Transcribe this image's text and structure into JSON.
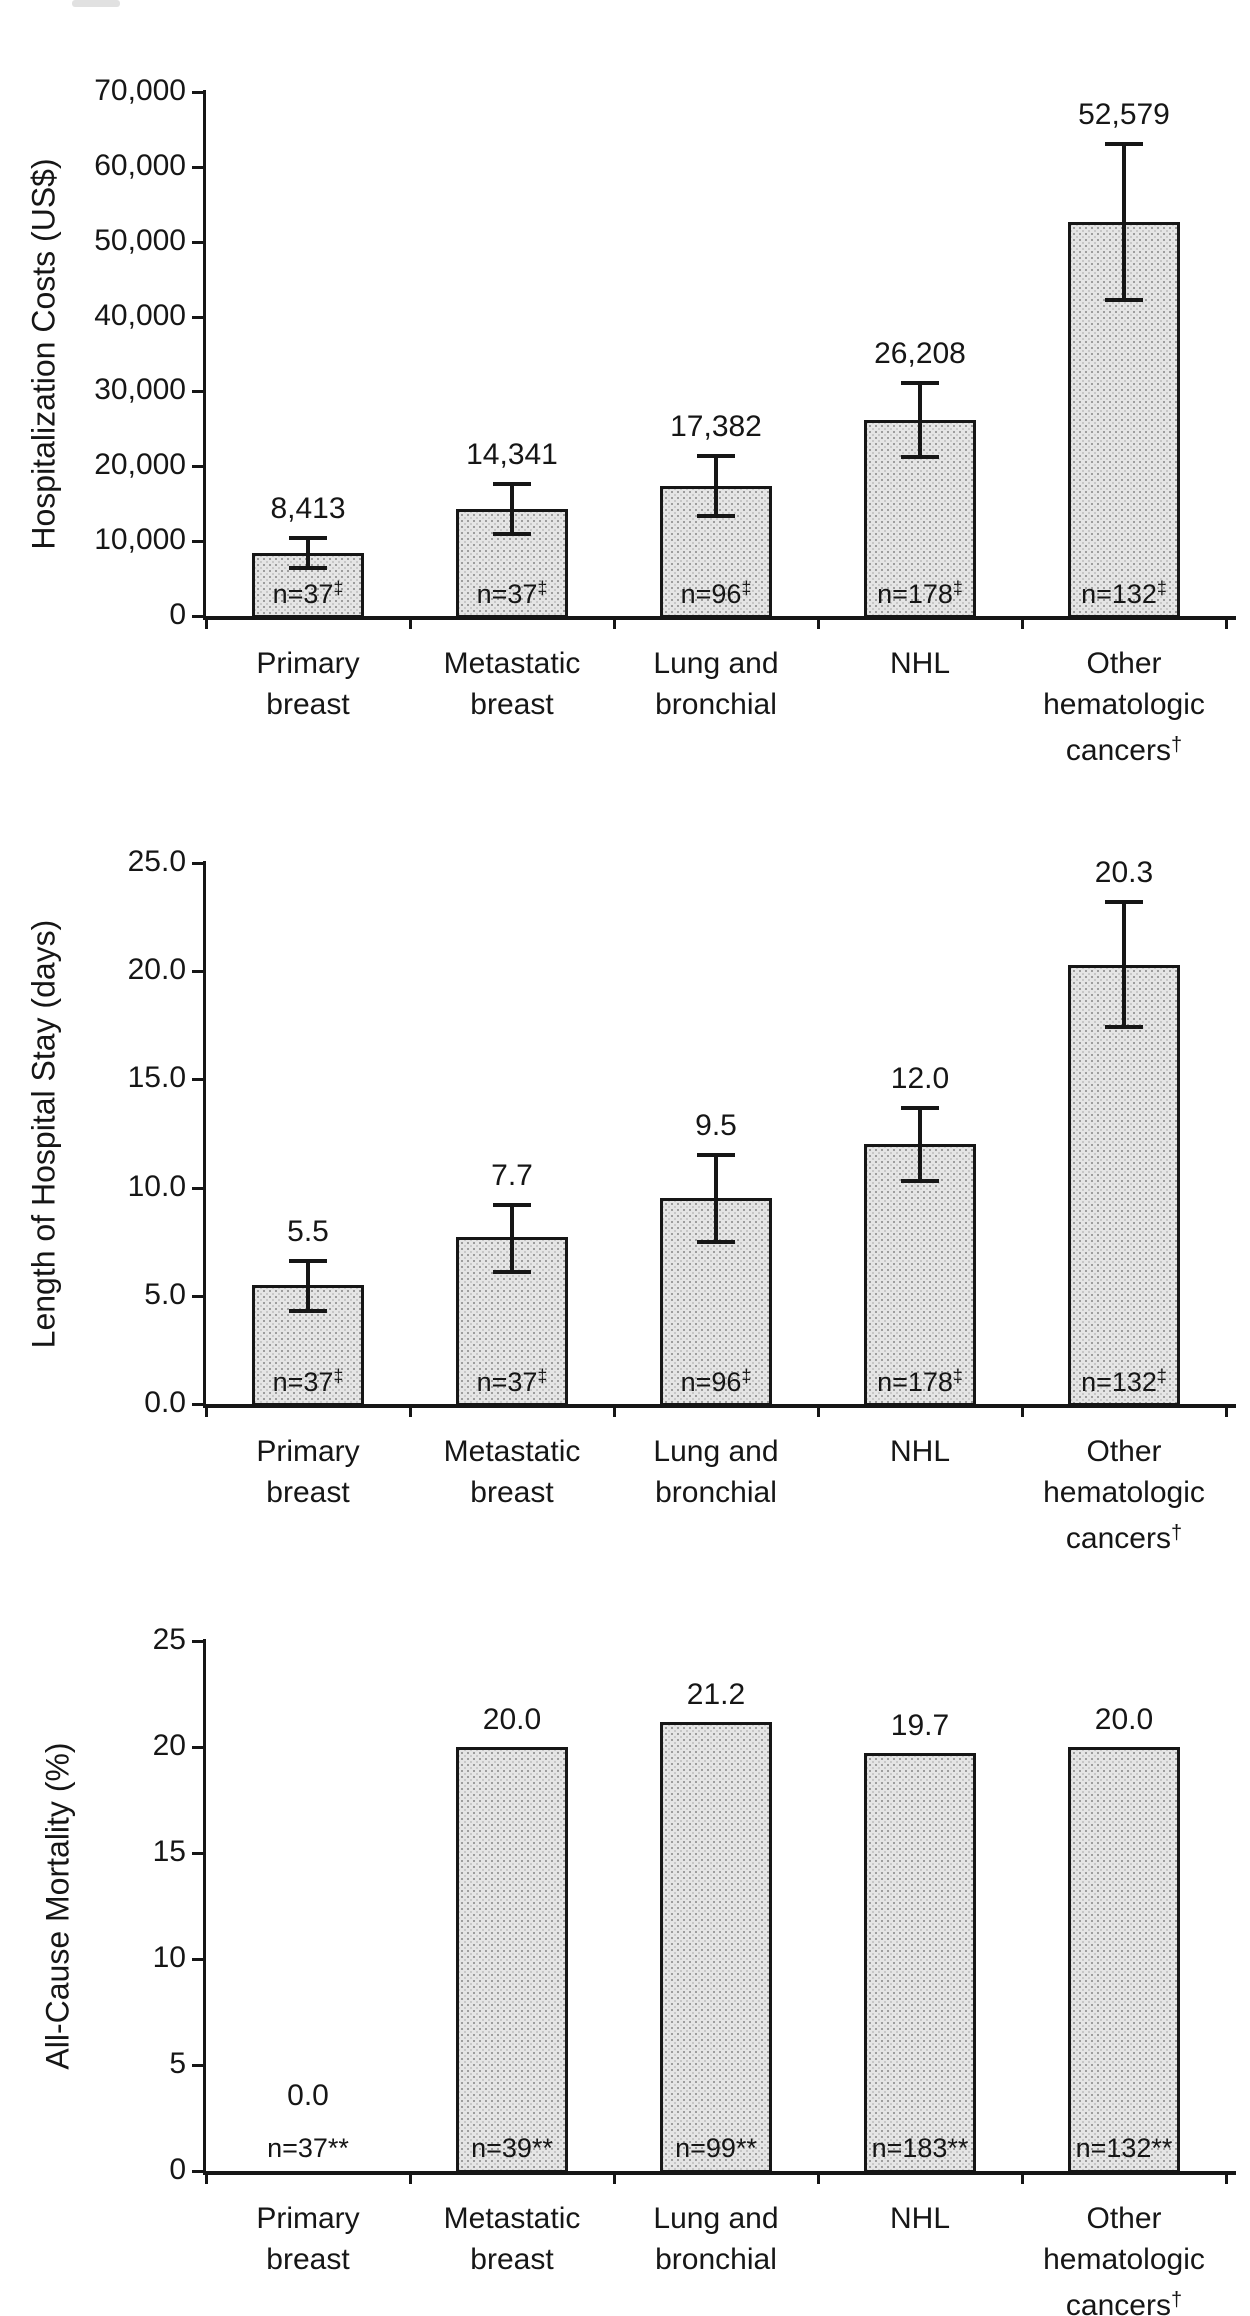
{
  "figure": {
    "background": "#ffffff",
    "bar_fill": "#e5e5e5",
    "bar_border": "#161616",
    "axis_color": "#161616",
    "categories": [
      {
        "lines": [
          "Primary",
          "breast"
        ],
        "sup": ""
      },
      {
        "lines": [
          "Metastatic",
          "breast"
        ],
        "sup": ""
      },
      {
        "lines": [
          "Lung and",
          "bronchial"
        ],
        "sup": ""
      },
      {
        "lines": [
          "NHL"
        ],
        "sup": ""
      },
      {
        "lines": [
          "Other",
          "hematologic",
          "cancers"
        ],
        "sup": "†"
      }
    ]
  },
  "chart_data": [
    {
      "type": "bar",
      "ylabel": "Hospitalization Costs (US$)",
      "xlabel": "",
      "ylim": [
        0,
        70000
      ],
      "grid": false,
      "legend": false,
      "categories": [
        "Primary breast",
        "Metastatic breast",
        "Lung and bronchial",
        "NHL",
        "Other hematologic cancers†"
      ],
      "values": [
        8413,
        14341,
        17382,
        26208,
        52579
      ],
      "value_labels": [
        "8,413",
        "14,341",
        "17,382",
        "26,208",
        "52,579"
      ],
      "error_upper": [
        10400,
        17700,
        21400,
        31100,
        63000
      ],
      "error_lower": [
        6400,
        11000,
        13400,
        21300,
        42200
      ],
      "yticks": [
        0,
        10000,
        20000,
        30000,
        40000,
        50000,
        60000,
        70000
      ],
      "ytick_labels": [
        "0",
        "10,000",
        "20,000",
        "30,000",
        "40,000",
        "50,000",
        "60,000",
        "70,000"
      ],
      "n_values": [
        "n=37",
        "n=37",
        "n=96",
        "n=178",
        "n=132"
      ],
      "n_sup": "‡",
      "n_sup_is_superscript": true
    },
    {
      "type": "bar",
      "ylabel": "Length of Hospital Stay (days)",
      "xlabel": "",
      "ylim": [
        0,
        25
      ],
      "grid": false,
      "legend": false,
      "categories": [
        "Primary breast",
        "Metastatic breast",
        "Lung and bronchial",
        "NHL",
        "Other hematologic cancers†"
      ],
      "values": [
        5.5,
        7.7,
        9.5,
        12.0,
        20.3
      ],
      "value_labels": [
        "5.5",
        "7.7",
        "9.5",
        "12.0",
        "20.3"
      ],
      "error_upper": [
        6.6,
        9.2,
        11.5,
        13.7,
        23.2
      ],
      "error_lower": [
        4.3,
        6.1,
        7.5,
        10.3,
        17.4
      ],
      "yticks": [
        0,
        5,
        10,
        15,
        20,
        25
      ],
      "ytick_labels": [
        "0.0",
        "5.0",
        "10.0",
        "15.0",
        "20.0",
        "25.0"
      ],
      "n_values": [
        "n=37",
        "n=37",
        "n=96",
        "n=178",
        "n=132"
      ],
      "n_sup": "‡",
      "n_sup_is_superscript": true
    },
    {
      "type": "bar",
      "ylabel": "All-Cause Mortality (%)",
      "xlabel": "",
      "ylim": [
        0,
        25
      ],
      "grid": false,
      "legend": false,
      "categories": [
        "Primary breast",
        "Metastatic breast",
        "Lung and bronchial",
        "NHL",
        "Other hematologic cancers†"
      ],
      "values": [
        0.0,
        20.0,
        21.2,
        19.7,
        20.0
      ],
      "value_labels": [
        "0.0",
        "20.0",
        "21.2",
        "19.7",
        "20.0"
      ],
      "error_upper": null,
      "error_lower": null,
      "yticks": [
        0,
        5,
        10,
        15,
        20,
        25
      ],
      "ytick_labels": [
        "0",
        "5",
        "10",
        "15",
        "20",
        "25"
      ],
      "n_values": [
        "n=37",
        "n=39",
        "n=99",
        "n=183",
        "n=132"
      ],
      "n_sup": "**",
      "n_sup_is_superscript": false
    }
  ]
}
